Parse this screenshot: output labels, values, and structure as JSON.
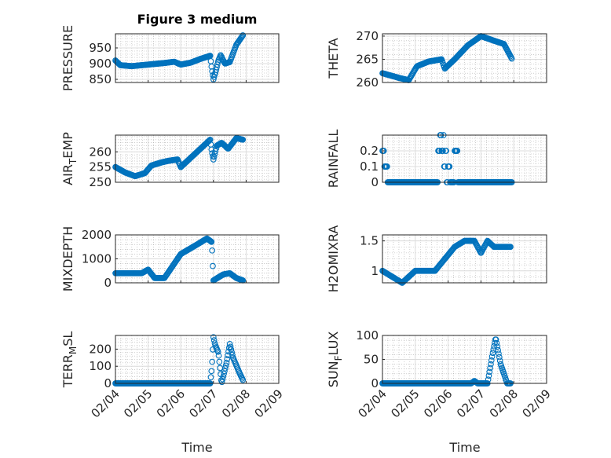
{
  "title": "Figure 3 medium",
  "xlabel": "Time",
  "x_tick_labels": [
    "02/04",
    "02/05",
    "02/06",
    "02/07",
    "02/08",
    "02/09"
  ],
  "marker_color": "#0072BD",
  "chart_data": [
    {
      "type": "scatter",
      "ylabel": "PRESSURE",
      "xlim": [
        0,
        5
      ],
      "ylim": [
        840,
        995
      ],
      "yticks": [
        850,
        900,
        950
      ],
      "x_units": "days since 02/04",
      "points": [
        [
          0,
          910
        ],
        [
          0.15,
          895
        ],
        [
          0.5,
          892
        ],
        [
          1,
          897
        ],
        [
          1.5,
          902
        ],
        [
          1.8,
          906
        ],
        [
          2,
          897
        ],
        [
          2.3,
          903
        ],
        [
          2.6,
          915
        ],
        [
          2.9,
          925
        ],
        [
          2.95,
          882
        ],
        [
          3.0,
          850
        ],
        [
          3.08,
          880
        ],
        [
          3.15,
          910
        ],
        [
          3.22,
          927
        ],
        [
          3.35,
          900
        ],
        [
          3.5,
          905
        ],
        [
          3.7,
          960
        ],
        [
          3.9,
          990
        ]
      ]
    },
    {
      "type": "scatter",
      "ylabel": "THETA",
      "xlim": [
        0,
        5
      ],
      "ylim": [
        260,
        270.5
      ],
      "yticks": [
        260,
        265,
        270
      ],
      "points": [
        [
          0,
          262
        ],
        [
          0.5,
          261
        ],
        [
          0.8,
          260.5
        ],
        [
          1.05,
          263.5
        ],
        [
          1.4,
          264.5
        ],
        [
          1.8,
          265
        ],
        [
          1.9,
          263
        ],
        [
          2.2,
          265
        ],
        [
          2.6,
          268
        ],
        [
          3,
          270
        ],
        [
          3.4,
          269
        ],
        [
          3.7,
          268.3
        ],
        [
          3.95,
          265
        ]
      ]
    },
    {
      "type": "scatter",
      "ylabel": "AIR_TEMP",
      "xlim": [
        0,
        5
      ],
      "ylim": [
        250,
        265.5
      ],
      "yticks": [
        250,
        255,
        260
      ],
      "points": [
        [
          0,
          255
        ],
        [
          0.3,
          253.2
        ],
        [
          0.6,
          252
        ],
        [
          0.9,
          253
        ],
        [
          1.1,
          255.5
        ],
        [
          1.4,
          256.5
        ],
        [
          1.6,
          257
        ],
        [
          1.9,
          257.5
        ],
        [
          2.0,
          255
        ],
        [
          2.5,
          260
        ],
        [
          2.9,
          264
        ],
        [
          2.95,
          260
        ],
        [
          3.0,
          257.5
        ],
        [
          3.1,
          262
        ],
        [
          3.25,
          263
        ],
        [
          3.45,
          261
        ],
        [
          3.7,
          264.5
        ],
        [
          3.9,
          264
        ]
      ]
    },
    {
      "type": "scatter",
      "ylabel": "RAINFALL",
      "xlim": [
        0,
        5
      ],
      "ylim": [
        0,
        0.3
      ],
      "yticks": [
        0,
        0.1,
        0.2
      ],
      "step": true,
      "points": [
        [
          0,
          0.2
        ],
        [
          0.05,
          0.1
        ],
        [
          0.15,
          0
        ],
        [
          1.7,
          0.2
        ],
        [
          1.75,
          0.3
        ],
        [
          1.8,
          0.2
        ],
        [
          1.85,
          0.3
        ],
        [
          1.88,
          0.1
        ],
        [
          1.92,
          0.2
        ],
        [
          1.95,
          0
        ],
        [
          2.0,
          0.1
        ],
        [
          2.05,
          0
        ],
        [
          2.2,
          0.2
        ],
        [
          2.3,
          0
        ],
        [
          3.95,
          0
        ]
      ]
    },
    {
      "type": "scatter",
      "ylabel": "MIXDEPTH",
      "xlim": [
        0,
        5
      ],
      "ylim": [
        0,
        2000
      ],
      "yticks": [
        0,
        1000,
        2000
      ],
      "points": [
        [
          0,
          400
        ],
        [
          0.8,
          400
        ],
        [
          1.0,
          550
        ],
        [
          1.2,
          200
        ],
        [
          1.5,
          200
        ],
        [
          1.7,
          600
        ],
        [
          2,
          1200
        ],
        [
          2.5,
          1600
        ],
        [
          2.8,
          1850
        ],
        [
          2.95,
          1700
        ],
        [
          2.97,
          1000
        ],
        [
          3.0,
          100
        ],
        [
          3.3,
          350
        ],
        [
          3.5,
          400
        ],
        [
          3.7,
          200
        ],
        [
          3.9,
          100
        ]
      ]
    },
    {
      "type": "scatter",
      "ylabel": "H2OMIXRA",
      "xlim": [
        0,
        5
      ],
      "ylim": [
        0.8,
        1.6
      ],
      "yticks": [
        1,
        1.5
      ],
      "points": [
        [
          0,
          1
        ],
        [
          0.3,
          0.9
        ],
        [
          0.6,
          0.8
        ],
        [
          0.8,
          0.9
        ],
        [
          1.0,
          1.0
        ],
        [
          1.6,
          1.0
        ],
        [
          1.9,
          1.2
        ],
        [
          2.2,
          1.4
        ],
        [
          2.5,
          1.5
        ],
        [
          2.8,
          1.5
        ],
        [
          3.0,
          1.3
        ],
        [
          3.2,
          1.5
        ],
        [
          3.4,
          1.4
        ],
        [
          3.9,
          1.4
        ]
      ]
    },
    {
      "type": "scatter",
      "ylabel": "TERR_MSL",
      "xlim": [
        0,
        5
      ],
      "ylim": [
        0,
        280
      ],
      "yticks": [
        0,
        100,
        200
      ],
      "points": [
        [
          0,
          0
        ],
        [
          2.9,
          0
        ],
        [
          2.95,
          90
        ],
        [
          3.0,
          270
        ],
        [
          3.05,
          225
        ],
        [
          3.15,
          180
        ],
        [
          3.25,
          0
        ],
        [
          3.4,
          120
        ],
        [
          3.5,
          230
        ],
        [
          3.6,
          150
        ],
        [
          3.8,
          60
        ],
        [
          3.9,
          20
        ]
      ]
    },
    {
      "type": "scatter",
      "ylabel": "SUN_FLUX",
      "xlim": [
        0,
        5
      ],
      "ylim": [
        0,
        100
      ],
      "yticks": [
        0,
        50,
        100
      ],
      "points": [
        [
          0,
          0
        ],
        [
          2.7,
          0
        ],
        [
          2.8,
          5
        ],
        [
          2.9,
          0
        ],
        [
          3.2,
          0
        ],
        [
          3.35,
          60
        ],
        [
          3.45,
          95
        ],
        [
          3.6,
          40
        ],
        [
          3.8,
          0
        ],
        [
          3.9,
          0
        ]
      ]
    }
  ]
}
